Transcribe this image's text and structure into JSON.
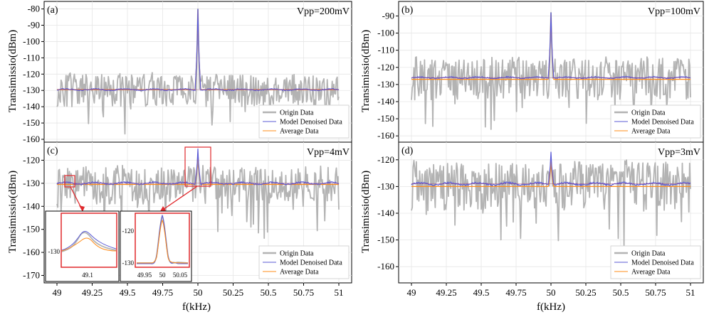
{
  "x_label": "f(kHz)",
  "y_label": "Transimissio(dBm)",
  "x_ticks": [
    "49",
    "49.25",
    "49.5",
    "49.75",
    "50",
    "50.25",
    "50.5",
    "50.75",
    "51"
  ],
  "legend_labels": [
    "Origin Data",
    "Model Denoised Data",
    "Average Data"
  ],
  "colors": {
    "origin": "#b3b3b3",
    "model": "#5b5bd6",
    "average": "#ff8c1a",
    "inset_box": "#e0282c"
  },
  "panels": [
    {
      "label": "(a)",
      "vpp": "Vpp=200mV",
      "y_ticks": [
        "-80",
        "-90",
        "-100",
        "-110",
        "-120",
        "-130",
        "-140",
        "-150",
        "-160"
      ]
    },
    {
      "label": "(b)",
      "vpp": "Vpp=100mV",
      "y_ticks": [
        "-90",
        "-100",
        "-110",
        "-120",
        "-130",
        "-140",
        "-150",
        "-160"
      ]
    },
    {
      "label": "(c)",
      "vpp": "Vpp=4mV",
      "y_ticks": [
        "-120",
        "-130",
        "-140",
        "-150",
        "-160",
        "-170"
      ]
    },
    {
      "label": "(d)",
      "vpp": "Vpp=3mV",
      "y_ticks": [
        "-120",
        "-130",
        "-140",
        "-150",
        "-160"
      ]
    }
  ],
  "insets": {
    "left": {
      "y_tick": "-130",
      "x_tick": "49.1"
    },
    "right": {
      "y_ticks": [
        "-120",
        "-130"
      ],
      "x_ticks": [
        "49.95",
        "50",
        "50.05"
      ]
    }
  },
  "chart_data": [
    {
      "type": "line",
      "panel": "(a)",
      "xlim": [
        49,
        51
      ],
      "ylim": [
        -160,
        -78
      ],
      "series": [
        {
          "name": "Origin Data",
          "kind": "noise",
          "baseline": -130,
          "spread": 10,
          "peak_x": 50,
          "peak_y": -80
        },
        {
          "name": "Model Denoised Data",
          "baseline": -129.5,
          "peak_x": 50,
          "peak_y": -80
        },
        {
          "name": "Average Data",
          "baseline": -129.5,
          "peak_x": 50,
          "peak_y": -80.5
        }
      ]
    },
    {
      "type": "line",
      "panel": "(b)",
      "xlim": [
        49,
        51
      ],
      "ylim": [
        -162,
        -84
      ],
      "series": [
        {
          "name": "Origin Data",
          "kind": "noise",
          "baseline": -127,
          "spread": 12,
          "peak_x": 50,
          "peak_y": -88
        },
        {
          "name": "Model Denoised Data",
          "baseline": -126,
          "peak_x": 50,
          "peak_y": -88
        },
        {
          "name": "Average Data",
          "baseline": -127,
          "peak_x": 50,
          "peak_y": -89
        }
      ]
    },
    {
      "type": "line",
      "panel": "(c)",
      "xlim": [
        49,
        51
      ],
      "ylim": [
        -172,
        -114
      ],
      "series": [
        {
          "name": "Origin Data",
          "kind": "noise",
          "baseline": -131,
          "spread": 8,
          "peak_x": 50,
          "peak_y": -118
        },
        {
          "name": "Model Denoised Data",
          "baseline": -130,
          "peak_x": 50,
          "peak_y": -115
        },
        {
          "name": "Average Data",
          "baseline": -130.5,
          "peak_x": 50,
          "peak_y": -117
        }
      ]
    },
    {
      "type": "line",
      "panel": "(d)",
      "xlim": [
        49,
        51
      ],
      "ylim": [
        -165,
        -115
      ],
      "series": [
        {
          "name": "Origin Data",
          "kind": "noise",
          "baseline": -130,
          "spread": 9,
          "peak_x": 50,
          "peak_y": -120
        },
        {
          "name": "Model Denoised Data",
          "baseline": -129,
          "peak_x": 50,
          "peak_y": -117
        },
        {
          "name": "Average Data",
          "baseline": -130,
          "peak_x": 50,
          "peak_y": -120
        }
      ]
    }
  ]
}
